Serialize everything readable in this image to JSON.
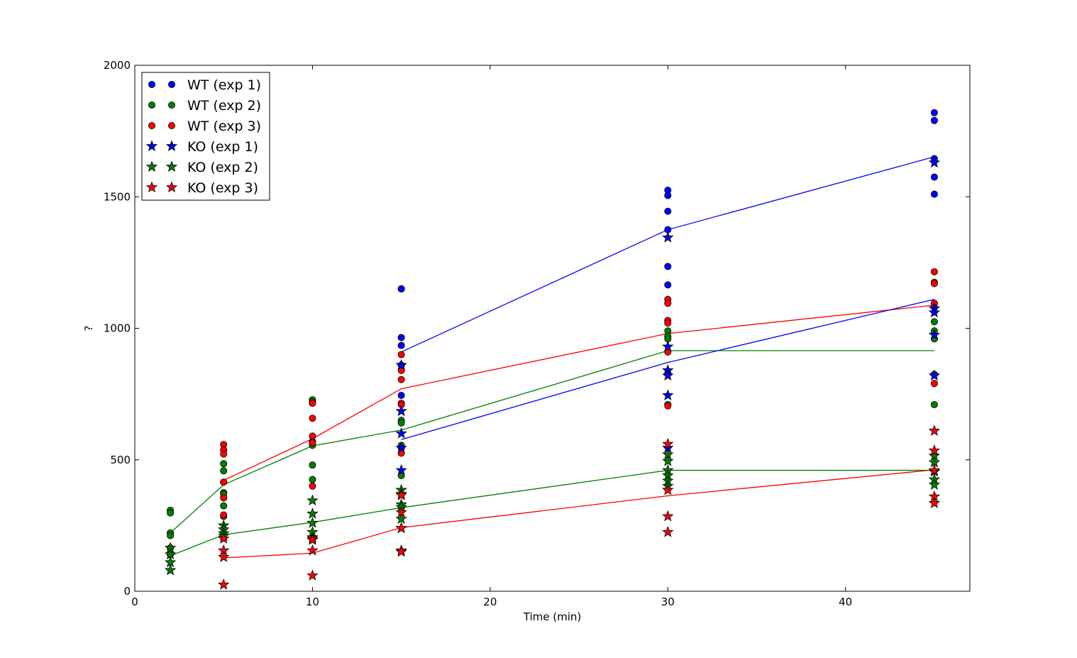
{
  "chart_data": {
    "type": "scatter",
    "xlabel": "Time (min)",
    "ylabel": "?",
    "xlim": [
      0,
      47
    ],
    "ylim": [
      0,
      2000
    ],
    "xticks": [
      0,
      10,
      20,
      30,
      40
    ],
    "yticks": [
      0,
      500,
      1000,
      1500,
      2000
    ],
    "grid": false,
    "legend_position": "top-left",
    "colors": {
      "exp1": "#0000ff",
      "exp2": "#008000",
      "exp3": "#ff0000"
    },
    "series": [
      {
        "name": "WT (exp 1)",
        "marker": "circle",
        "color": "#0000ff",
        "points": [
          [
            15,
            1150
          ],
          [
            15,
            1150
          ],
          [
            15,
            965
          ],
          [
            15,
            935
          ],
          [
            15,
            860
          ],
          [
            15,
            745
          ],
          [
            30,
            1525
          ],
          [
            30,
            1505
          ],
          [
            30,
            1445
          ],
          [
            30,
            1375
          ],
          [
            30,
            1235
          ],
          [
            30,
            1165
          ],
          [
            45,
            1820
          ],
          [
            45,
            1790
          ],
          [
            45,
            1645
          ],
          [
            45,
            1575
          ],
          [
            45,
            1510
          ]
        ],
        "mean_line": [
          [
            15,
            910
          ],
          [
            30,
            1375
          ],
          [
            45,
            1652
          ]
        ]
      },
      {
        "name": "WT (exp 2)",
        "marker": "circle",
        "color": "#008000",
        "points": [
          [
            2,
            308
          ],
          [
            2,
            298
          ],
          [
            2,
            222
          ],
          [
            2,
            212
          ],
          [
            2,
            165
          ],
          [
            2,
            140
          ],
          [
            5,
            485
          ],
          [
            5,
            458
          ],
          [
            5,
            415
          ],
          [
            5,
            375
          ],
          [
            5,
            370
          ],
          [
            5,
            325
          ],
          [
            5,
            285
          ],
          [
            10,
            728
          ],
          [
            10,
            720
          ],
          [
            10,
            570
          ],
          [
            10,
            555
          ],
          [
            10,
            480
          ],
          [
            10,
            425
          ],
          [
            15,
            650
          ],
          [
            15,
            640
          ],
          [
            15,
            555
          ],
          [
            15,
            545
          ],
          [
            15,
            440
          ],
          [
            30,
            990
          ],
          [
            30,
            970
          ],
          [
            30,
            960
          ],
          [
            30,
            830
          ],
          [
            30,
            710
          ],
          [
            45,
            1025
          ],
          [
            45,
            990
          ],
          [
            45,
            960
          ],
          [
            45,
            825
          ],
          [
            45,
            710
          ]
        ],
        "mean_line": [
          [
            2,
            222
          ],
          [
            5,
            405
          ],
          [
            10,
            553
          ],
          [
            15,
            613
          ],
          [
            30,
            915
          ],
          [
            45,
            915
          ]
        ]
      },
      {
        "name": "WT (exp 3)",
        "marker": "circle",
        "color": "#ff0000",
        "points": [
          [
            5,
            558
          ],
          [
            5,
            538
          ],
          [
            5,
            522
          ],
          [
            5,
            415
          ],
          [
            5,
            355
          ],
          [
            5,
            290
          ],
          [
            10,
            715
          ],
          [
            10,
            658
          ],
          [
            10,
            590
          ],
          [
            10,
            565
          ],
          [
            10,
            400
          ],
          [
            15,
            900
          ],
          [
            15,
            840
          ],
          [
            15,
            805
          ],
          [
            15,
            715
          ],
          [
            15,
            710
          ],
          [
            15,
            525
          ],
          [
            30,
            1110
          ],
          [
            30,
            1095
          ],
          [
            30,
            1030
          ],
          [
            30,
            1020
          ],
          [
            30,
            910
          ],
          [
            30,
            705
          ],
          [
            45,
            1215
          ],
          [
            45,
            1175
          ],
          [
            45,
            1170
          ],
          [
            45,
            1095
          ],
          [
            45,
            1080
          ],
          [
            45,
            790
          ]
        ],
        "mean_line": [
          [
            5,
            422
          ],
          [
            10,
            580
          ],
          [
            15,
            770
          ],
          [
            30,
            980
          ],
          [
            45,
            1088
          ]
        ]
      },
      {
        "name": "KO (exp 1)",
        "marker": "star",
        "color": "#0000ff",
        "points": [
          [
            15,
            860
          ],
          [
            15,
            685
          ],
          [
            15,
            600
          ],
          [
            15,
            545
          ],
          [
            15,
            460
          ],
          [
            30,
            1345
          ],
          [
            30,
            930
          ],
          [
            30,
            840
          ],
          [
            30,
            820
          ],
          [
            30,
            745
          ],
          [
            30,
            545
          ],
          [
            45,
            1630
          ],
          [
            45,
            1075
          ],
          [
            45,
            1060
          ],
          [
            45,
            975
          ],
          [
            45,
            820
          ]
        ],
        "mean_line": [
          [
            15,
            577
          ],
          [
            30,
            870
          ],
          [
            45,
            1110
          ]
        ]
      },
      {
        "name": "KO (exp 2)",
        "marker": "star",
        "color": "#008000",
        "points": [
          [
            2,
            165
          ],
          [
            2,
            140
          ],
          [
            2,
            110
          ],
          [
            2,
            80
          ],
          [
            5,
            250
          ],
          [
            5,
            235
          ],
          [
            5,
            220
          ],
          [
            5,
            210
          ],
          [
            10,
            345
          ],
          [
            10,
            295
          ],
          [
            10,
            260
          ],
          [
            10,
            225
          ],
          [
            10,
            205
          ],
          [
            15,
            385
          ],
          [
            15,
            370
          ],
          [
            15,
            330
          ],
          [
            15,
            320
          ],
          [
            15,
            275
          ],
          [
            15,
            240
          ],
          [
            30,
            520
          ],
          [
            30,
            495
          ],
          [
            30,
            460
          ],
          [
            30,
            440
          ],
          [
            30,
            420
          ],
          [
            30,
            400
          ],
          [
            45,
            515
          ],
          [
            45,
            490
          ],
          [
            45,
            455
          ],
          [
            45,
            425
          ],
          [
            45,
            405
          ]
        ],
        "mean_line": [
          [
            2,
            135
          ],
          [
            5,
            215
          ],
          [
            10,
            262
          ],
          [
            15,
            318
          ],
          [
            30,
            460
          ],
          [
            45,
            460
          ]
        ]
      },
      {
        "name": "KO (exp 3)",
        "marker": "star",
        "color": "#ff0000",
        "points": [
          [
            5,
            200
          ],
          [
            5,
            155
          ],
          [
            5,
            130
          ],
          [
            5,
            25
          ],
          [
            10,
            200
          ],
          [
            10,
            195
          ],
          [
            10,
            155
          ],
          [
            10,
            60
          ],
          [
            15,
            365
          ],
          [
            15,
            300
          ],
          [
            15,
            240
          ],
          [
            15,
            155
          ],
          [
            15,
            150
          ],
          [
            30,
            560
          ],
          [
            30,
            385
          ],
          [
            30,
            285
          ],
          [
            30,
            225
          ],
          [
            45,
            610
          ],
          [
            45,
            535
          ],
          [
            45,
            460
          ],
          [
            45,
            360
          ],
          [
            45,
            335
          ]
        ],
        "mean_line": [
          [
            5,
            127
          ],
          [
            10,
            145
          ],
          [
            15,
            242
          ],
          [
            30,
            363
          ],
          [
            45,
            462
          ]
        ]
      }
    ]
  }
}
